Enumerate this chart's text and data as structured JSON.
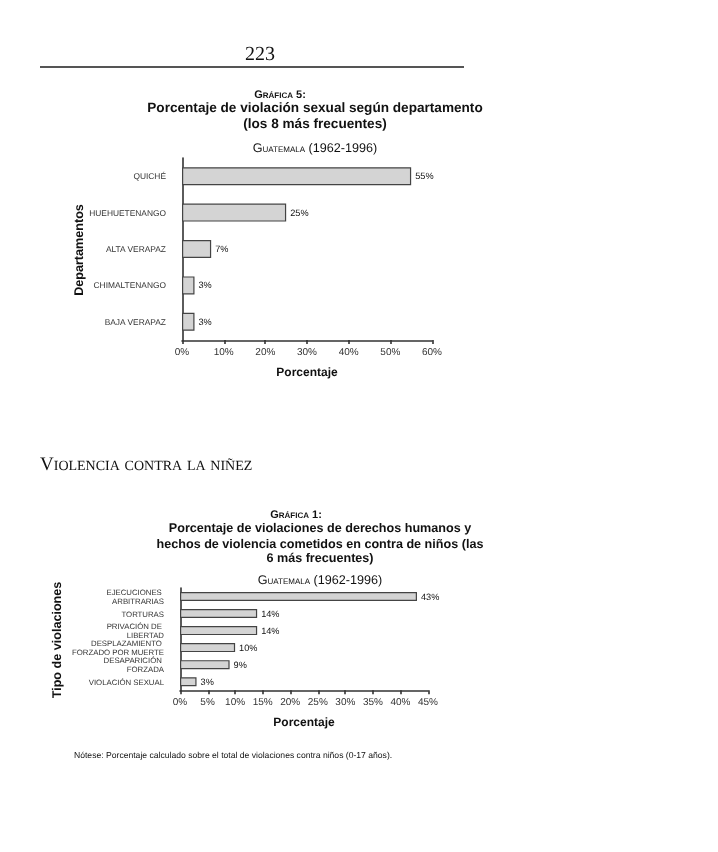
{
  "chart_data": [
    {
      "type": "bar",
      "orientation": "horizontal",
      "title": "Porcentaje de violación sexual según departamento (los 8 más frecuentes)",
      "subtitle": "Guatemala (1962-1996)",
      "xlabel": "Porcentaje",
      "ylabel": "Departamentos",
      "annotations": [
        "223",
        "Gráfica 5:"
      ],
      "categories": [
        "QUICHÉ",
        "HUEHUETENANGO",
        "ALTA VERAPAZ",
        "CHIMALTENANGO",
        "BAJA VERAPAZ"
      ],
      "values": [
        55,
        25,
        7,
        3,
        3
      ],
      "value_labels": [
        "55%",
        "25%",
        "7%",
        "3%",
        "3%"
      ],
      "color": "#d4d4d4",
      "xlim": [
        0,
        60
      ],
      "xticks": [
        {
          "value": 0,
          "label": "0%"
        },
        {
          "value": 10,
          "label": "10%"
        },
        {
          "value": 20,
          "label": "20%"
        },
        {
          "value": 30,
          "label": "30%"
        },
        {
          "value": 40,
          "label": "40%"
        },
        {
          "value": 50,
          "label": "50%"
        },
        {
          "value": 60,
          "label": "60%"
        }
      ],
      "grid": false
    },
    {
      "type": "bar",
      "orientation": "horizontal",
      "title": "Porcentaje de violaciones de derechos humanos y hechos de violencia cometidos en contra de niños (las 6 más frecuentes)",
      "subtitle": "Guatemala (1962-1996)",
      "xlabel": "Porcentaje",
      "ylabel": "Tipo de violaciones",
      "annotations": [
        "Violencia contra la niñez",
        "Gráfica 1:",
        "Nótese: Porcentaje calculado sobre el total de violaciones contra niños (0-17 años)."
      ],
      "categories": [
        "EJECUCIONES ARBITRARIAS",
        "TORTURAS",
        "PRIVACIÓN DE LIBERTAD",
        "DESPLAZAMIENTO FORZADO POR MUERTE",
        "DESAPARICIÓN FORZADA",
        "VIOLACIÓN SEXUAL"
      ],
      "values": [
        43,
        14,
        14,
        10,
        9,
        3
      ],
      "value_labels": [
        "43%",
        "14%",
        "14%",
        "10%",
        "9%",
        "3%"
      ],
      "color": "#d4d4d4",
      "xlim": [
        0,
        45
      ],
      "xticks": [
        {
          "value": 0,
          "label": "0%"
        },
        {
          "value": 5,
          "label": "5%"
        },
        {
          "value": 10,
          "label": "10%"
        },
        {
          "value": 15,
          "label": "15%"
        },
        {
          "value": 20,
          "label": "20%"
        },
        {
          "value": 25,
          "label": "25%"
        },
        {
          "value": 30,
          "label": "30%"
        },
        {
          "value": 35,
          "label": "35%"
        },
        {
          "value": 40,
          "label": "40%"
        },
        {
          "value": 45,
          "label": "45%"
        }
      ],
      "grid": false
    }
  ]
}
